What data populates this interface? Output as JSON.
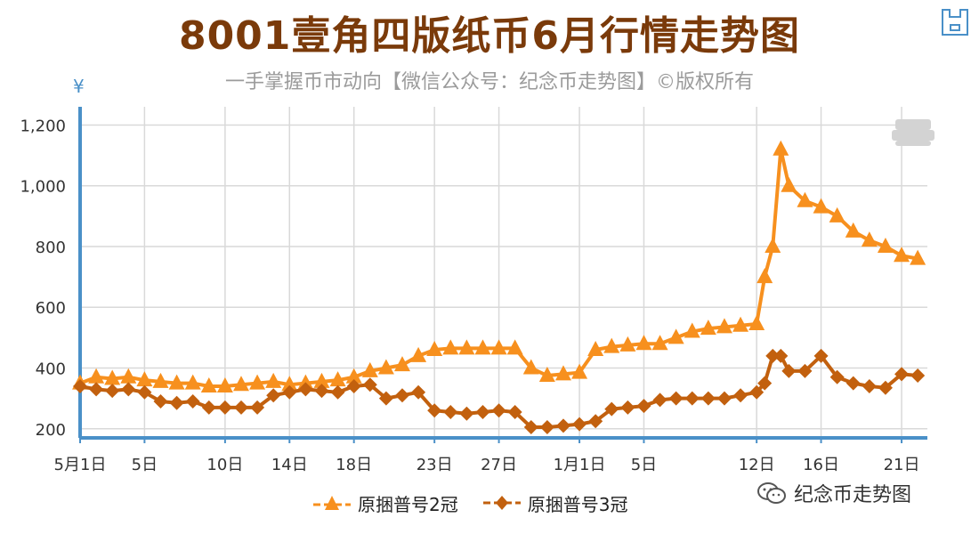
{
  "header": {
    "title": "8001壹角四版纸币6月行情走势图",
    "subtitle": "一手掌握币市动向【微信公众号：纪念币走势图】©版权所有"
  },
  "toolbar": {
    "save_icon": "save-icon"
  },
  "watermark": {
    "text": "纪念币走势图",
    "icon": "wechat-icon"
  },
  "colors": {
    "series1": "#f7901e",
    "series2": "#c2600e",
    "axis": "#4a90c8",
    "title": "#7a3a0a"
  },
  "chart_data": {
    "type": "line",
    "title": "8001壹角四版纸币6月行情走势图",
    "ylabel": "¥",
    "ylim": [
      170,
      1260
    ],
    "y_ticks": [
      200,
      400,
      600,
      800,
      1000,
      1200
    ],
    "y_tick_labels": [
      "200",
      "400",
      "600",
      "800",
      "1,000",
      "1,200"
    ],
    "x_tick_labels": [
      "5月1日",
      "5日",
      "10日",
      "14日",
      "18日",
      "23日",
      "27日",
      "1月1日",
      "5日",
      "12日",
      "16日",
      "21日"
    ],
    "x_tick_positions": [
      0,
      4,
      9,
      13,
      17,
      22,
      26,
      31,
      35,
      42,
      46,
      51
    ],
    "legend_position": "bottom",
    "grid": true,
    "series": [
      {
        "name": "原捆普号2冠",
        "marker": "triangle",
        "x": [
          0,
          1,
          2,
          3,
          4,
          5,
          6,
          7,
          8,
          9,
          10,
          11,
          12,
          13,
          14,
          15,
          16,
          17,
          18,
          19,
          20,
          21,
          22,
          23,
          24,
          25,
          26,
          27,
          28,
          29,
          30,
          31,
          32,
          33,
          34,
          35,
          36,
          37,
          38,
          39,
          40,
          41,
          42,
          42.5,
          43,
          43.5,
          44,
          45,
          46,
          47,
          48,
          49,
          50,
          51,
          52
        ],
        "values": [
          350,
          370,
          365,
          370,
          360,
          355,
          350,
          350,
          340,
          340,
          345,
          350,
          355,
          345,
          350,
          355,
          360,
          370,
          390,
          400,
          410,
          440,
          460,
          465,
          465,
          465,
          465,
          465,
          400,
          375,
          380,
          385,
          460,
          470,
          475,
          480,
          480,
          500,
          520,
          530,
          535,
          540,
          545,
          700,
          800,
          1120,
          1000,
          950,
          930,
          900,
          850,
          820,
          800,
          770,
          760
        ]
      },
      {
        "name": "原捆普号3冠",
        "marker": "diamond",
        "x": [
          0,
          1,
          2,
          3,
          4,
          5,
          6,
          7,
          8,
          9,
          10,
          11,
          12,
          13,
          14,
          15,
          16,
          17,
          18,
          19,
          20,
          21,
          22,
          23,
          24,
          25,
          26,
          27,
          28,
          29,
          30,
          31,
          32,
          33,
          34,
          35,
          36,
          37,
          38,
          39,
          40,
          41,
          42,
          42.5,
          43,
          43.5,
          44,
          45,
          46,
          47,
          48,
          49,
          50,
          51,
          52
        ],
        "values": [
          340,
          330,
          325,
          330,
          320,
          290,
          285,
          290,
          270,
          270,
          270,
          270,
          310,
          320,
          330,
          325,
          320,
          340,
          345,
          300,
          310,
          320,
          260,
          255,
          250,
          255,
          260,
          255,
          205,
          205,
          210,
          215,
          225,
          265,
          270,
          275,
          295,
          300,
          300,
          300,
          300,
          310,
          320,
          350,
          440,
          440,
          390,
          390,
          440,
          370,
          350,
          340,
          335,
          380,
          375
        ]
      }
    ]
  }
}
